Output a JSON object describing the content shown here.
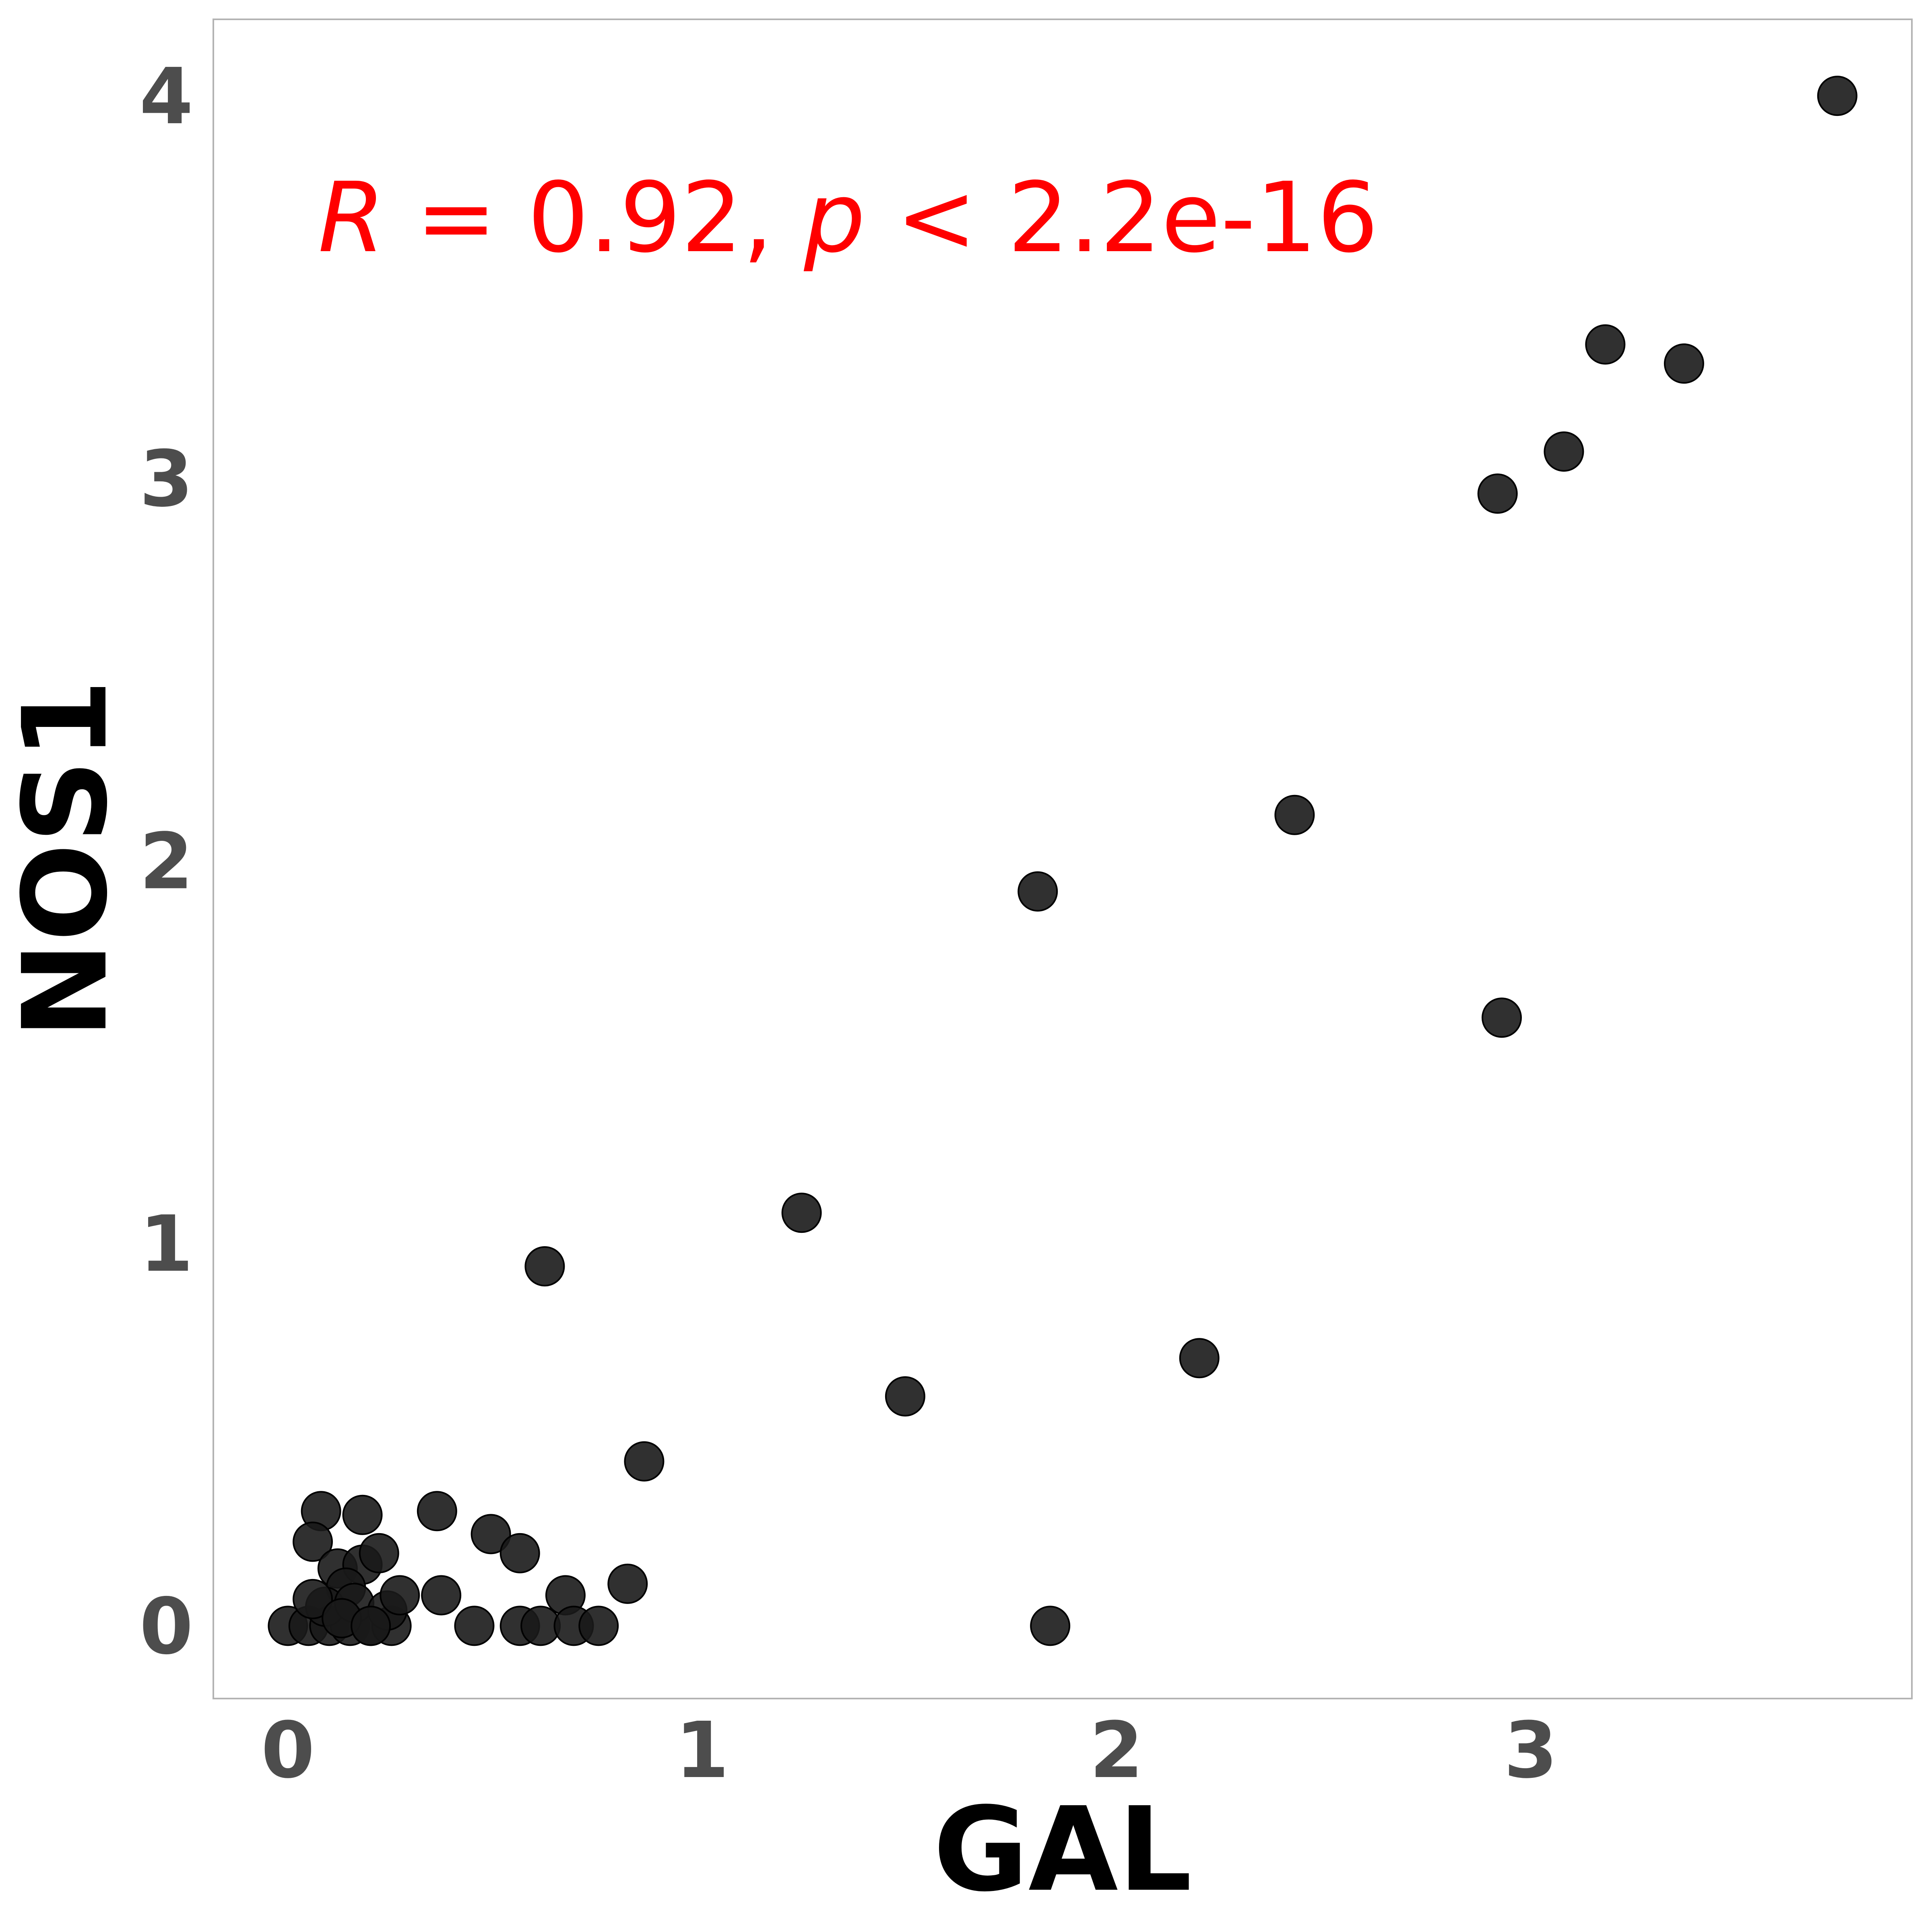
{
  "chart_data": {
    "type": "scatter",
    "title": "",
    "xlabel": "GAL",
    "ylabel": "NOS1",
    "xlim": [
      -0.18,
      3.92
    ],
    "ylim": [
      -0.19,
      4.2
    ],
    "x_ticks": [
      0,
      1,
      2,
      3
    ],
    "y_ticks": [
      0,
      1,
      2,
      3,
      4
    ],
    "x_tick_labels": [
      "0",
      "1",
      "2",
      "3"
    ],
    "y_tick_labels": [
      "0",
      "1",
      "2",
      "3",
      "4"
    ],
    "grid": false,
    "legend": "none",
    "annotation": {
      "R_symbol": "R",
      "equals_value": " = 0.92, ",
      "p_symbol": "p",
      "p_value": " < 2.2e-16"
    },
    "colors": {
      "points": "#1a1a1a",
      "annotation": "#ff0000",
      "tick_labels": "#4d4d4d",
      "axis_titles": "#000000",
      "panel_border": "#b3b3b3"
    },
    "series": [
      {
        "x": [
          3.74,
          3.18,
          3.37,
          3.08,
          2.92,
          2.43,
          1.81,
          2.93,
          1.24,
          0.62,
          1.49,
          2.2,
          0.86,
          0.08,
          0.18,
          0.36,
          0.49,
          0.56,
          0.06,
          0.82,
          0.67,
          0.37,
          0.45,
          0.56,
          0.61,
          0.69,
          0.75,
          1.84,
          0.0,
          0.05,
          0.1,
          0.15,
          0.2,
          0.25,
          0.12,
          0.18,
          0.22,
          0.14,
          0.09,
          0.16,
          0.24,
          0.27,
          0.06,
          0.13,
          0.2
        ],
        "y": [
          4.0,
          3.35,
          3.3,
          3.07,
          2.96,
          2.12,
          1.92,
          1.59,
          1.08,
          0.94,
          0.6,
          0.7,
          0.43,
          0.3,
          0.29,
          0.3,
          0.24,
          0.19,
          0.22,
          0.11,
          0.08,
          0.08,
          0.0,
          0.0,
          0.0,
          0.0,
          0.0,
          0.0,
          0.0,
          0.0,
          0.0,
          0.0,
          0.0,
          0.0,
          0.15,
          0.16,
          0.19,
          0.1,
          0.05,
          0.06,
          0.04,
          0.08,
          0.07,
          0.02,
          0.0
        ]
      }
    ]
  }
}
